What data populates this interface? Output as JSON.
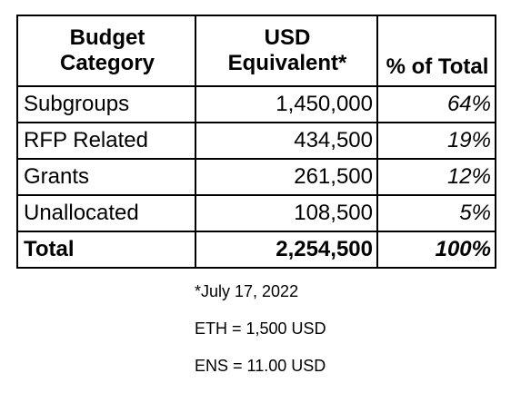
{
  "table": {
    "header": {
      "category_line1": "Budget",
      "category_line2": "Category",
      "usd_line1": "USD",
      "usd_line2": "Equivalent*",
      "pct": "% of Total"
    },
    "rows": [
      {
        "category": "Subgroups",
        "usd": "1,450,000",
        "pct": "64%"
      },
      {
        "category": "RFP Related",
        "usd": "434,500",
        "pct": "19%"
      },
      {
        "category": "Grants",
        "usd": "261,500",
        "pct": "12%"
      },
      {
        "category": "Unallocated",
        "usd": "108,500",
        "pct": "5%"
      }
    ],
    "total": {
      "category": "Total",
      "usd": "2,254,500",
      "pct": "100%"
    }
  },
  "notes": {
    "date": "*July 17, 2022",
    "eth": "ETH = 1,500 USD",
    "ens": "ENS = 11.00 USD"
  }
}
